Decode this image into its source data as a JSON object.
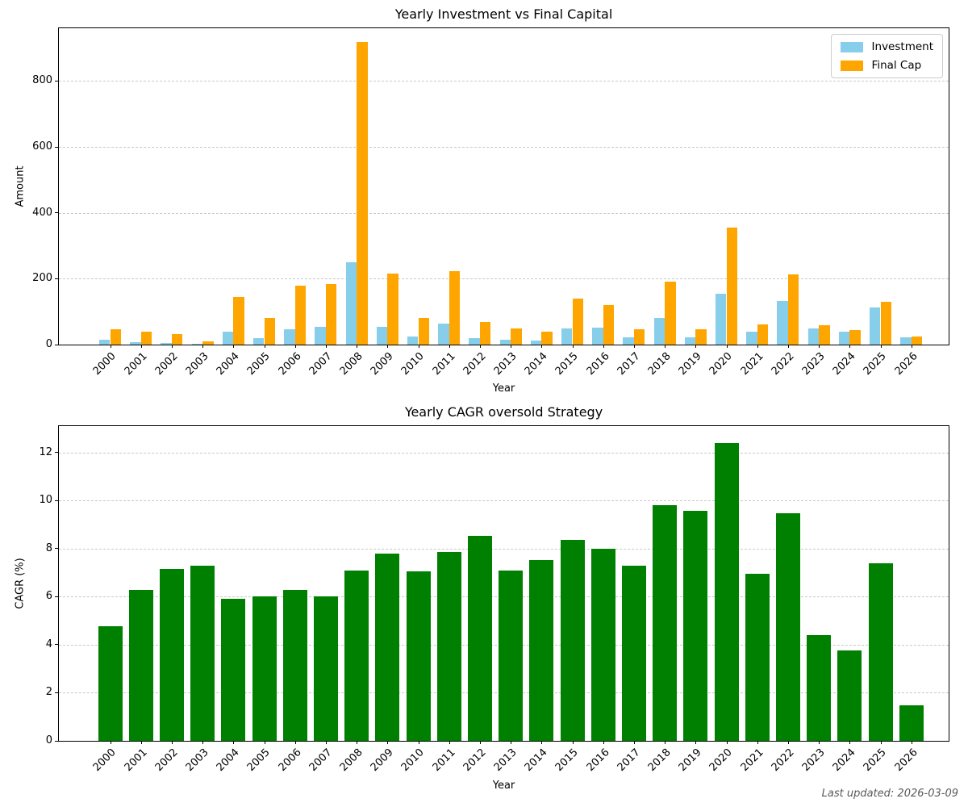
{
  "figure": {
    "footer_note": "Last updated: 2026-03-09"
  },
  "palette": {
    "investment": "#87ceeb",
    "final_cap": "#ffa500",
    "cagr_green": "#008000",
    "grid": "#c9c9c9",
    "spine": "#000000",
    "footer_text": "#595959"
  },
  "chart_data": [
    {
      "type": "bar",
      "title": "Yearly Investment vs Final Capital",
      "xlabel": "Year",
      "ylabel": "Amount",
      "categories": [
        "2000",
        "2001",
        "2002",
        "2003",
        "2004",
        "2005",
        "2006",
        "2007",
        "2008",
        "2009",
        "2010",
        "2011",
        "2012",
        "2013",
        "2014",
        "2015",
        "2016",
        "2017",
        "2018",
        "2019",
        "2020",
        "2021",
        "2022",
        "2023",
        "2024",
        "2025",
        "2026"
      ],
      "series": [
        {
          "name": "Investment",
          "color": "#87ceeb",
          "values": [
            14,
            7,
            6,
            2,
            38,
            20,
            47,
            54,
            250,
            53,
            25,
            63,
            19,
            15,
            12,
            50,
            52,
            22,
            80,
            21,
            155,
            40,
            133,
            49,
            39,
            112,
            22
          ]
        },
        {
          "name": "Final Cap",
          "color": "#ffa500",
          "values": [
            47,
            38,
            32,
            11,
            145,
            82,
            178,
            183,
            918,
            215,
            81,
            222,
            69,
            49,
            38,
            139,
            121,
            46,
            192,
            47,
            355,
            62,
            214,
            58,
            44,
            129,
            24
          ]
        }
      ],
      "ylim": [
        0,
        960
      ],
      "yticks": [
        0,
        200,
        400,
        600,
        800
      ],
      "grid": true,
      "legend": {
        "position": "upper right",
        "entries": [
          "Investment",
          "Final Cap"
        ]
      }
    },
    {
      "type": "bar",
      "title": "Yearly CAGR oversold Strategy",
      "xlabel": "Year",
      "ylabel": "CAGR (%)",
      "categories": [
        "2000",
        "2001",
        "2002",
        "2003",
        "2004",
        "2005",
        "2006",
        "2007",
        "2008",
        "2009",
        "2010",
        "2011",
        "2012",
        "2013",
        "2014",
        "2015",
        "2016",
        "2017",
        "2018",
        "2019",
        "2020",
        "2021",
        "2022",
        "2023",
        "2024",
        "2025",
        "2026"
      ],
      "series": [
        {
          "name": "CAGR",
          "color": "#008000",
          "values": [
            4.77,
            6.27,
            7.14,
            7.3,
            5.9,
            6.0,
            6.27,
            6.0,
            7.1,
            7.78,
            7.05,
            7.85,
            8.52,
            7.1,
            7.53,
            8.37,
            7.98,
            7.3,
            9.8,
            9.56,
            12.4,
            6.94,
            9.46,
            4.4,
            3.75,
            7.4,
            1.48
          ]
        }
      ],
      "ylim": [
        0,
        13.1
      ],
      "yticks": [
        0,
        2,
        4,
        6,
        8,
        10,
        12
      ],
      "grid": true,
      "legend": null
    }
  ]
}
